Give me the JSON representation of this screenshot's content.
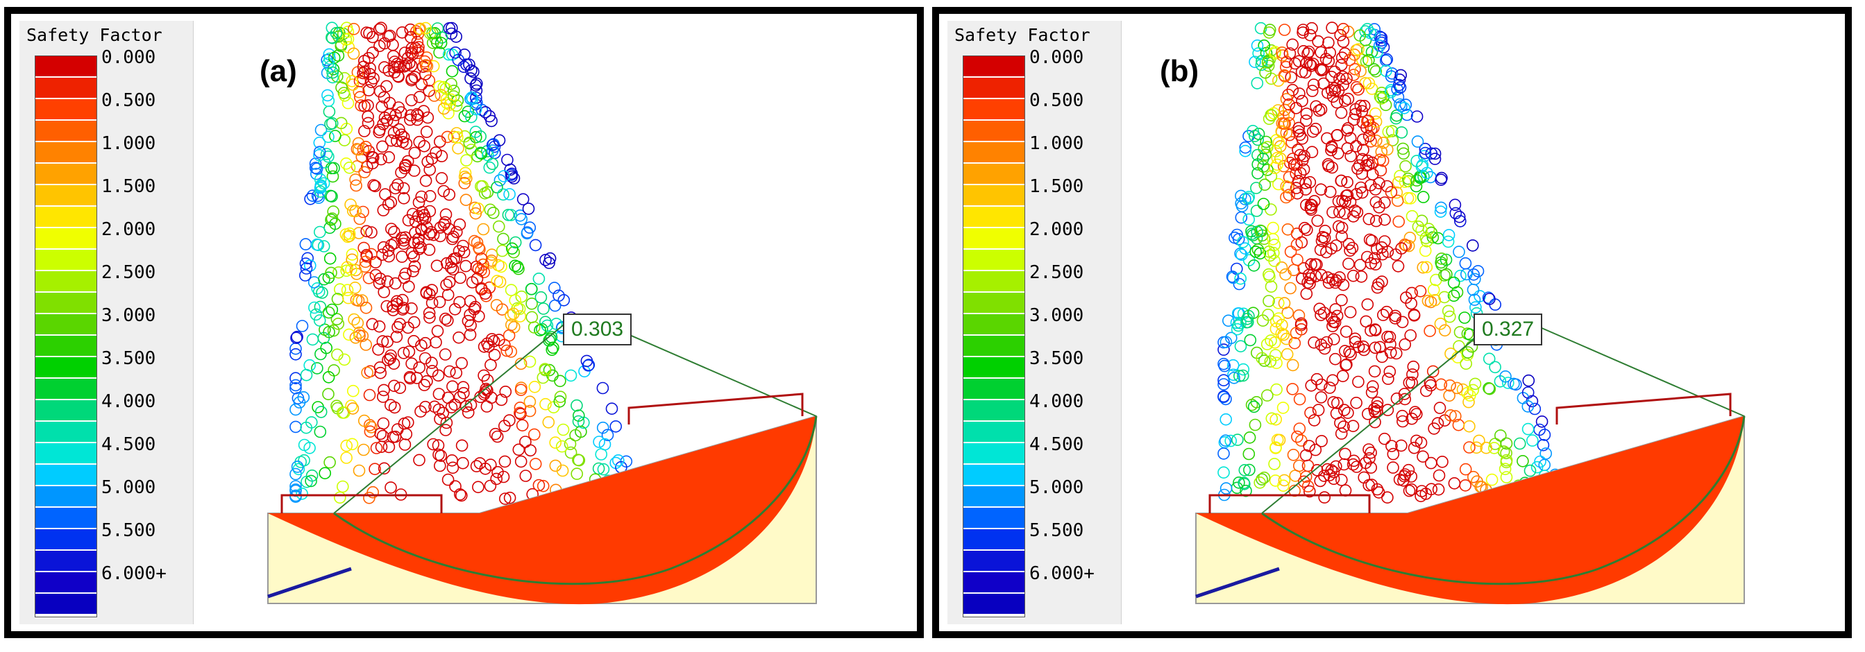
{
  "legend": {
    "title": "Safety Factor",
    "ticks": [
      "0.000",
      "0.500",
      "1.000",
      "1.500",
      "2.000",
      "2.500",
      "3.000",
      "3.500",
      "4.000",
      "4.500",
      "5.000",
      "5.500",
      "6.000+"
    ],
    "colors": [
      "#d40000",
      "#ee2200",
      "#ff4000",
      "#ff5f00",
      "#ff8200",
      "#ffa200",
      "#ffc400",
      "#ffe600",
      "#f0ff00",
      "#ccff00",
      "#a6f000",
      "#80e000",
      "#5ad600",
      "#2cd000",
      "#00d000",
      "#00d030",
      "#00d87a",
      "#00e0ac",
      "#00e6d6",
      "#00ccff",
      "#0096ff",
      "#0064ff",
      "#0032f0",
      "#0a14d8",
      "#1000c8",
      "#0800c0"
    ]
  },
  "panels": [
    {
      "id": "a",
      "label": "(a)",
      "factor_of_safety": "0.303"
    },
    {
      "id": "b",
      "label": "(b)",
      "factor_of_safety": "0.327"
    }
  ],
  "colors": {
    "soil": "#fffac8",
    "slip_mass": "#ff3a00",
    "slip_circle": "#2e7d32",
    "slope_line": "#b01010",
    "water_line": "#1a1aa0"
  }
}
